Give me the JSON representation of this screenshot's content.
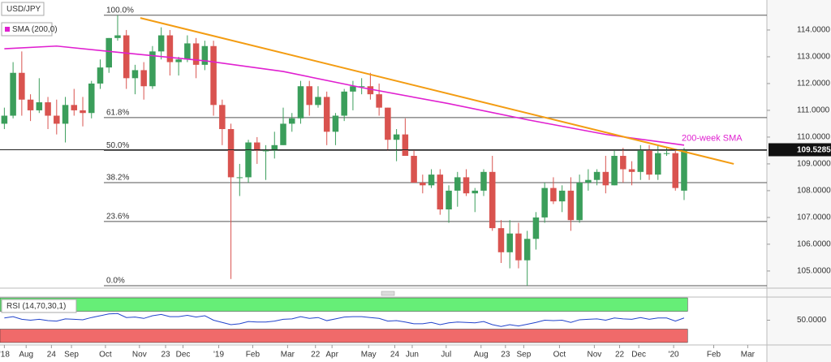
{
  "chart_data": {
    "type": "candlestick",
    "symbol": "USD/JPY",
    "up_color": "#3b9e5b",
    "down_color": "#d9534f",
    "xlim": [
      -0.5,
      87.5
    ],
    "ylim": [
      104.36,
      115.12
    ],
    "xticks": [
      {
        "value": 0,
        "label": "'18"
      },
      {
        "value": 2.5,
        "label": "Aug"
      },
      {
        "value": 5.4,
        "label": "24"
      },
      {
        "value": 7.7,
        "label": "Sep"
      },
      {
        "value": 11.6,
        "label": "Oct"
      },
      {
        "value": 15.5,
        "label": "Nov"
      },
      {
        "value": 18.5,
        "label": "23"
      },
      {
        "value": 20.5,
        "label": "Dec"
      },
      {
        "value": 24.6,
        "label": "'19"
      },
      {
        "value": 28.5,
        "label": "Feb"
      },
      {
        "value": 32.5,
        "label": "Mar"
      },
      {
        "value": 35.7,
        "label": "22"
      },
      {
        "value": 37.6,
        "label": "Apr"
      },
      {
        "value": 41.8,
        "label": "May"
      },
      {
        "value": 44.8,
        "label": "24"
      },
      {
        "value": 46.8,
        "label": "Jun"
      },
      {
        "value": 50.7,
        "label": "Jul"
      },
      {
        "value": 54.7,
        "label": "Aug"
      },
      {
        "value": 57.5,
        "label": "23"
      },
      {
        "value": 59.6,
        "label": "Sep"
      },
      {
        "value": 63.7,
        "label": "Oct"
      },
      {
        "value": 67.7,
        "label": "Nov"
      },
      {
        "value": 70.6,
        "label": "22"
      },
      {
        "value": 72.8,
        "label": "Dec"
      },
      {
        "value": 76.8,
        "label": "'20"
      },
      {
        "value": 81.4,
        "label": "Feb"
      },
      {
        "value": 85.3,
        "label": "Mar"
      }
    ],
    "yticks": [
      {
        "value": 105,
        "label": "105.0000"
      },
      {
        "value": 106,
        "label": "106.0000"
      },
      {
        "value": 107,
        "label": "107.0000"
      },
      {
        "value": 108,
        "label": "108.0000"
      },
      {
        "value": 109,
        "label": "109.0000"
      },
      {
        "value": 110,
        "label": "110.0000"
      },
      {
        "value": 111,
        "label": "111.0000"
      },
      {
        "value": 112,
        "label": "112.0000"
      },
      {
        "value": 113,
        "label": "113.0000"
      },
      {
        "value": 114,
        "label": "114.0000"
      }
    ],
    "last_price": 109.5285,
    "candles": [
      [
        110.5,
        111.1,
        110.3,
        110.8
      ],
      [
        110.8,
        112.8,
        110.7,
        112.4
      ],
      [
        112.4,
        113.2,
        110.8,
        111.4
      ],
      [
        111.4,
        111.6,
        110.6,
        111.0
      ],
      [
        111.0,
        112.2,
        110.9,
        111.3
      ],
      [
        111.3,
        111.5,
        110.3,
        110.8
      ],
      [
        110.8,
        111.4,
        110.1,
        110.5
      ],
      [
        110.5,
        111.5,
        109.8,
        111.2
      ],
      [
        111.2,
        111.8,
        110.8,
        111.0
      ],
      [
        111.0,
        111.5,
        110.4,
        110.9
      ],
      [
        110.9,
        112.1,
        110.7,
        112.0
      ],
      [
        112.0,
        112.9,
        111.8,
        112.6
      ],
      [
        112.6,
        113.7,
        112.4,
        113.7
      ],
      [
        113.7,
        114.55,
        113.6,
        113.8
      ],
      [
        113.8,
        114.0,
        111.8,
        112.2
      ],
      [
        112.2,
        112.7,
        111.6,
        112.5
      ],
      [
        112.5,
        112.8,
        111.4,
        111.9
      ],
      [
        111.9,
        113.4,
        111.8,
        113.2
      ],
      [
        113.2,
        114.1,
        112.9,
        113.8
      ],
      [
        113.8,
        114.0,
        112.3,
        112.8
      ],
      [
        112.8,
        113.0,
        112.3,
        112.9
      ],
      [
        112.9,
        113.8,
        112.8,
        113.5
      ],
      [
        113.5,
        113.7,
        112.2,
        112.7
      ],
      [
        112.7,
        113.6,
        112.5,
        113.4
      ],
      [
        113.4,
        113.6,
        110.8,
        111.2
      ],
      [
        111.2,
        111.4,
        109.7,
        110.3
      ],
      [
        110.3,
        110.5,
        104.7,
        108.5
      ],
      [
        108.5,
        109.0,
        107.8,
        108.5
      ],
      [
        108.5,
        109.9,
        108.3,
        109.8
      ],
      [
        109.8,
        110.0,
        109.0,
        109.5
      ],
      [
        109.5,
        109.7,
        108.4,
        109.5
      ],
      [
        109.5,
        110.2,
        109.2,
        109.7
      ],
      [
        109.7,
        111.1,
        109.7,
        110.5
      ],
      [
        110.5,
        110.9,
        110.2,
        110.7
      ],
      [
        110.7,
        112.1,
        110.5,
        111.9
      ],
      [
        111.9,
        112.1,
        110.8,
        111.2
      ],
      [
        111.2,
        111.9,
        111.1,
        111.5
      ],
      [
        111.5,
        111.7,
        109.7,
        110.2
      ],
      [
        110.2,
        110.9,
        109.7,
        110.8
      ],
      [
        110.8,
        111.8,
        110.6,
        111.7
      ],
      [
        111.7,
        112.1,
        111.0,
        111.9
      ],
      [
        111.9,
        112.2,
        111.6,
        111.9
      ],
      [
        111.9,
        112.4,
        111.4,
        111.6
      ],
      [
        111.6,
        112.0,
        110.8,
        111.1
      ],
      [
        111.1,
        111.1,
        109.5,
        109.9
      ],
      [
        109.9,
        110.3,
        109.1,
        110.1
      ],
      [
        110.1,
        110.7,
        109.3,
        109.3
      ],
      [
        109.3,
        109.5,
        108.3,
        108.3
      ],
      [
        108.3,
        108.6,
        107.9,
        108.2
      ],
      [
        108.2,
        108.8,
        108.1,
        108.6
      ],
      [
        108.6,
        108.8,
        107.1,
        107.3
      ],
      [
        107.3,
        108.2,
        106.8,
        108.0
      ],
      [
        108.0,
        108.7,
        107.4,
        108.5
      ],
      [
        108.5,
        108.8,
        107.8,
        107.9
      ],
      [
        107.9,
        108.1,
        107.2,
        108.0
      ],
      [
        108.0,
        108.8,
        107.8,
        108.7
      ],
      [
        108.7,
        109.3,
        106.5,
        106.6
      ],
      [
        106.6,
        106.9,
        105.3,
        105.7
      ],
      [
        105.7,
        106.9,
        105.1,
        106.4
      ],
      [
        106.4,
        106.8,
        105.1,
        105.4
      ],
      [
        105.4,
        106.5,
        104.45,
        106.2
      ],
      [
        106.2,
        107.2,
        105.8,
        107.0
      ],
      [
        107.0,
        108.3,
        106.8,
        108.1
      ],
      [
        108.1,
        108.5,
        107.5,
        107.6
      ],
      [
        107.6,
        108.2,
        107.2,
        108.0
      ],
      [
        108.0,
        108.5,
        106.5,
        106.9
      ],
      [
        106.9,
        108.6,
        106.8,
        108.3
      ],
      [
        108.3,
        108.8,
        108.0,
        108.4
      ],
      [
        108.4,
        108.8,
        108.2,
        108.7
      ],
      [
        108.7,
        109.3,
        107.9,
        108.2
      ],
      [
        108.2,
        109.5,
        108.2,
        109.3
      ],
      [
        109.3,
        109.6,
        108.3,
        108.8
      ],
      [
        108.8,
        109.1,
        108.2,
        108.7
      ],
      [
        108.7,
        109.7,
        108.4,
        109.5
      ],
      [
        109.5,
        109.7,
        108.4,
        108.6
      ],
      [
        108.6,
        109.7,
        108.4,
        109.4
      ],
      [
        109.4,
        109.6,
        109.3,
        109.4
      ],
      [
        109.4,
        109.5,
        108.0,
        108.1
      ],
      [
        108.0,
        109.6,
        107.65,
        109.53
      ]
    ],
    "sma": {
      "name": "SMA (200,0)",
      "color": "#e020d0",
      "x": [
        0,
        6,
        12,
        23,
        32,
        41,
        51,
        60,
        69,
        78
      ],
      "values": [
        113.3,
        113.4,
        113.2,
        112.85,
        112.45,
        111.85,
        111.25,
        110.65,
        110.1,
        109.7
      ]
    },
    "sma_annotation": "200-week SMA",
    "trendline": {
      "color": "#f39c12",
      "x": [
        15.6,
        83.7
      ],
      "values": [
        114.45,
        109.0
      ]
    },
    "levels": [
      {
        "label": "100.0%",
        "price": 114.55
      },
      {
        "label": "61.8%",
        "price": 110.73
      },
      {
        "label": "50.0%",
        "price": 109.5
      },
      {
        "label": "38.2%",
        "price": 108.3
      },
      {
        "label": "23.6%",
        "price": 106.85
      },
      {
        "label": "0.0%",
        "price": 104.45
      }
    ],
    "rsi": {
      "name": "RSI (14,70,30,1)",
      "color": "#2244cc",
      "ylim": [
        0,
        100
      ],
      "overbought": 70,
      "oversold": 30,
      "yticks": [
        {
          "value": 50,
          "label": "50.0000"
        }
      ],
      "values": [
        55,
        58,
        52,
        50,
        52,
        49,
        48,
        53,
        52,
        51,
        56,
        60,
        64,
        65,
        56,
        57,
        54,
        60,
        63,
        58,
        58,
        61,
        57,
        60,
        50,
        45,
        40,
        42,
        47,
        46,
        46,
        48,
        52,
        53,
        58,
        54,
        56,
        49,
        53,
        57,
        58,
        58,
        56,
        54,
        48,
        49,
        46,
        42,
        42,
        45,
        40,
        44,
        46,
        45,
        44,
        47,
        40,
        36,
        40,
        37,
        41,
        45,
        50,
        49,
        50,
        45,
        51,
        52,
        53,
        50,
        55,
        53,
        52,
        56,
        52,
        55,
        55,
        48,
        55
      ]
    }
  }
}
